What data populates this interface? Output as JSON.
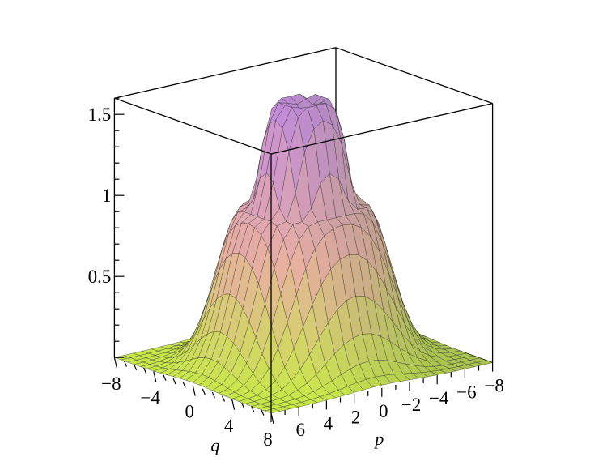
{
  "chart_data": {
    "type": "surface3d",
    "title": "",
    "xlabel": "p",
    "ylabel": "q",
    "zlabel": "",
    "xlim": [
      -8,
      8
    ],
    "ylim": [
      -8,
      8
    ],
    "zlim": [
      0,
      1.6
    ],
    "grid": false,
    "box": true,
    "surface": {
      "shape": "two stacked radial rings (tiered tower)",
      "inner_ring": {
        "radius": 1.5,
        "peak_height": 1.6
      },
      "outer_ring": {
        "radius": 3.6,
        "peak_height": 0.95
      },
      "decay_width": 2.2,
      "mesh_lines": 25,
      "colors": {
        "low": "#c8e84a",
        "mid": "#e8b0a0",
        "high": "#c48ae0",
        "shadow": "#6a7f55"
      }
    },
    "z_ticks": [
      {
        "value": 1.5,
        "label": "1.5"
      },
      {
        "value": 1.0,
        "label": "1"
      },
      {
        "value": 0.5,
        "label": "0.5"
      }
    ],
    "q_ticks": [
      {
        "value": -8,
        "label": "−8"
      },
      {
        "value": -4,
        "label": "−4"
      },
      {
        "value": 0,
        "label": "0"
      },
      {
        "value": 4,
        "label": "4"
      },
      {
        "value": 8,
        "label": "8"
      }
    ],
    "p_ticks": [
      {
        "value": 6,
        "label": "6"
      },
      {
        "value": 4,
        "label": "4"
      },
      {
        "value": 2,
        "label": "2"
      },
      {
        "value": 0,
        "label": "0"
      },
      {
        "value": -2,
        "label": "−2"
      },
      {
        "value": -4,
        "label": "−4"
      },
      {
        "value": -6,
        "label": "−6"
      },
      {
        "value": -8,
        "label": "−8"
      }
    ]
  }
}
